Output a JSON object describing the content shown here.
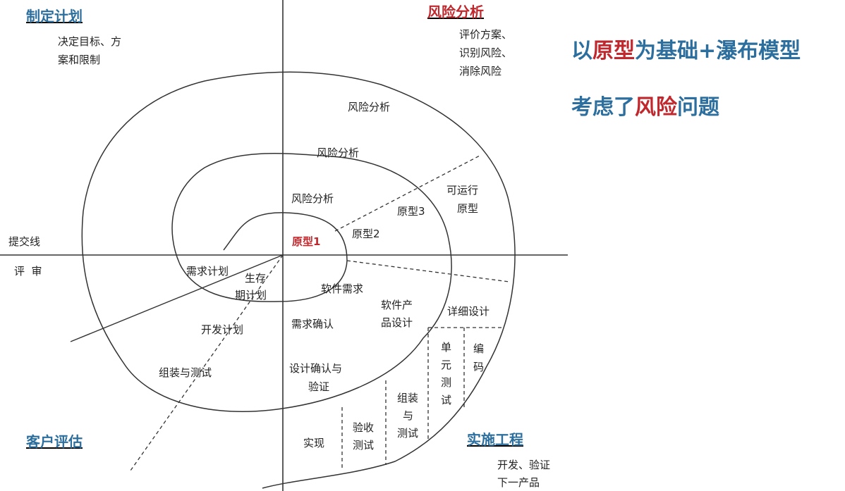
{
  "quadrants": {
    "plan": {
      "title": "制定计划",
      "desc": [
        "决定目标、方",
        "案和限制"
      ]
    },
    "risk": {
      "title": "风险分析",
      "desc": [
        "评价方案、",
        "识别风险、",
        "消除风险"
      ]
    },
    "eval": {
      "title": "客户评估"
    },
    "impl": {
      "title": "实施工程",
      "desc": [
        "开发、验证",
        "下一产品"
      ]
    }
  },
  "axis_labels": {
    "submit": "提交线",
    "review": "评  审"
  },
  "risk_labels": [
    "风险分析",
    "风险分析",
    "风险分析"
  ],
  "prototypes": {
    "p1": "原型1",
    "p2": "原型2",
    "p3": "原型3",
    "runnable": [
      "可运行",
      "原型"
    ]
  },
  "plans": {
    "requirements": "需求计划",
    "lifecycle": [
      "生存",
      "期计划"
    ],
    "development": "开发计划",
    "assembly": "组装与测试"
  },
  "engineering": {
    "software_req": "软件需求",
    "req_confirm": "需求确认",
    "product_design": [
      "软件产",
      "品设计"
    ],
    "design_confirm": [
      "设计确认与",
      "验证"
    ],
    "detail_design": "详细设计",
    "coding": [
      "编",
      "码"
    ],
    "unit_test": [
      "单",
      "元",
      "测",
      "试"
    ],
    "integration_test": [
      "组装",
      "与",
      "测试"
    ],
    "acceptance_test": [
      "验收",
      "测试"
    ],
    "implementation": "实现"
  },
  "headline1": {
    "pre": "以",
    "highlight": "原型",
    "post": "为基础+瀑布模型"
  },
  "headline2": {
    "pre": "考虑了",
    "highlight": "风险",
    "post": "问题"
  },
  "colors": {
    "title_blue": "#2c6f9e",
    "accent_red": "#c0282d",
    "line": "#333333",
    "text": "#222222"
  }
}
